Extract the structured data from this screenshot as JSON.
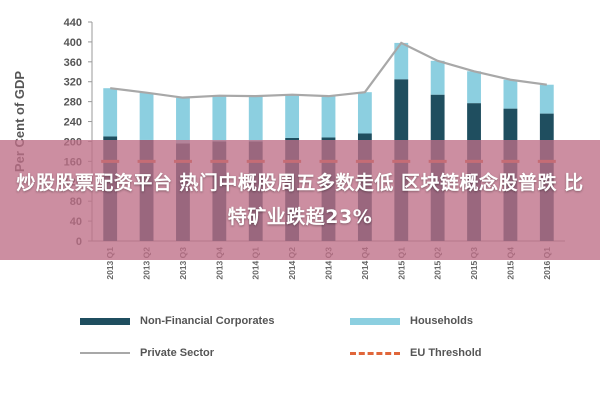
{
  "banner": {
    "text": "炒股股票配资平台 热门中概股周五多数走低 区块链概念股普跌 比特矿业跌超23%"
  },
  "colors": {
    "nfc": "#1f4e5f",
    "households": "#8ccfe0",
    "private_line": "#a8a8a8",
    "eu_threshold": "#e0663a",
    "banner_bg": "#be6e87"
  },
  "chart_data": {
    "type": "bar",
    "stacked": true,
    "ylabel": "Per Cent of GDP",
    "ylim": [
      0,
      440
    ],
    "yticks": [
      0,
      40,
      80,
      120,
      160,
      200,
      240,
      280,
      320,
      360,
      400,
      440
    ],
    "categories": [
      "2013 Q1",
      "2013 Q2",
      "2013 Q3",
      "2013 Q4",
      "2014 Q1",
      "2014 Q2",
      "2014 Q3",
      "2014 Q4",
      "2015 Q1",
      "2015 Q2",
      "2015 Q3",
      "2015 Q4",
      "2016 Q1"
    ],
    "series": [
      {
        "name": "Non-Financial Corporates",
        "kind": "bar",
        "color": "#1f4e5f",
        "values": [
          210,
          203,
          196,
          200,
          200,
          207,
          208,
          216,
          325,
          294,
          277,
          266,
          256
        ]
      },
      {
        "name": "Households",
        "kind": "bar",
        "color": "#8ccfe0",
        "values": [
          97,
          95,
          92,
          92,
          91,
          87,
          83,
          83,
          73,
          68,
          64,
          58,
          58
        ]
      },
      {
        "name": "Private Sector",
        "kind": "line",
        "color": "#a8a8a8",
        "values": [
          307,
          298,
          288,
          292,
          291,
          294,
          291,
          299,
          398,
          362,
          341,
          324,
          314
        ]
      },
      {
        "name": "EU Threshold",
        "kind": "dashed-line",
        "color": "#e0663a",
        "values": [
          160,
          160,
          160,
          160,
          160,
          160,
          160,
          160,
          160,
          160,
          160,
          160,
          160
        ]
      }
    ],
    "legend_position": "bottom",
    "grid": false
  }
}
